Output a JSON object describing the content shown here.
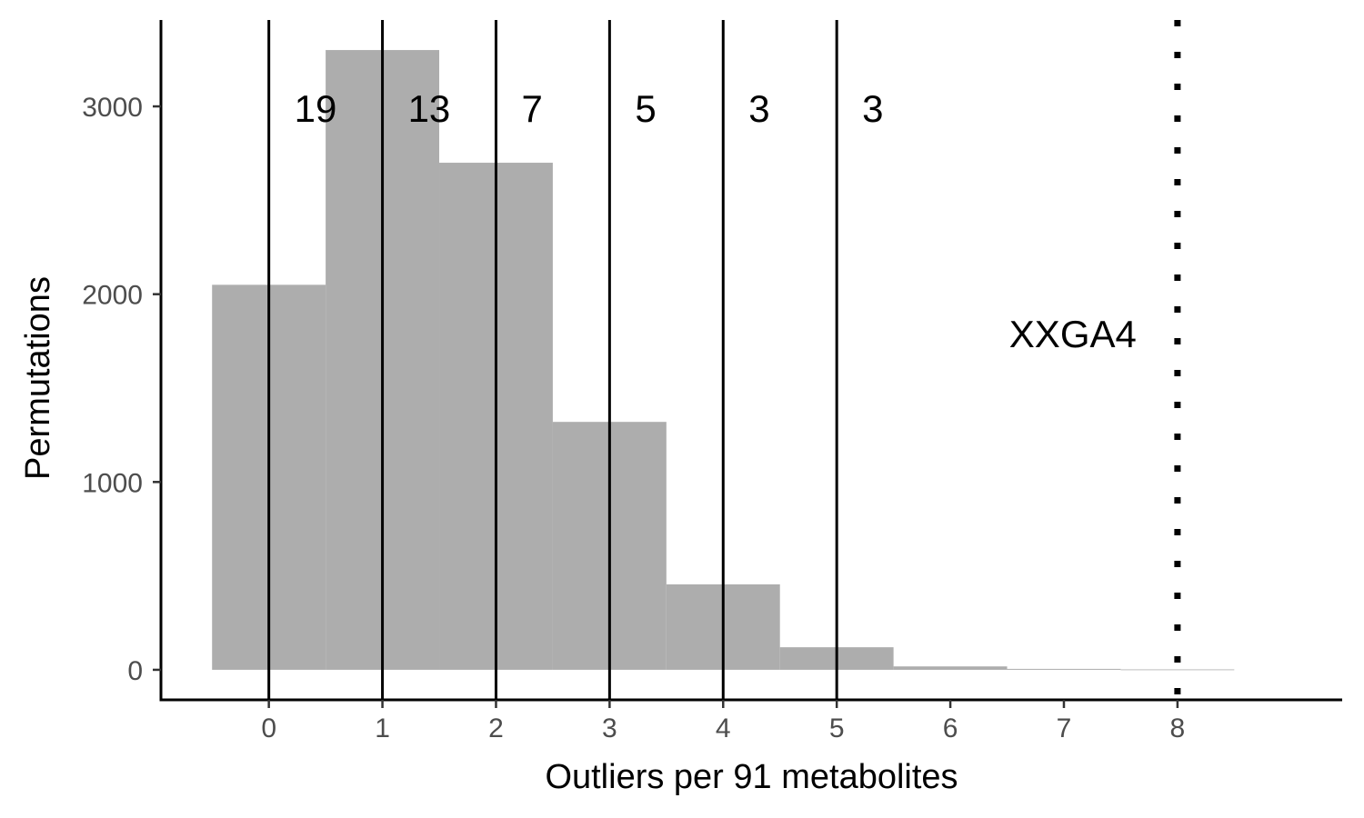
{
  "chart_data": {
    "type": "bar",
    "xlabel": "Outliers per 91 metabolites",
    "ylabel": "Permutations",
    "x_ticks": [
      "0",
      "1",
      "2",
      "3",
      "4",
      "5",
      "6",
      "7",
      "8"
    ],
    "y_ticks": [
      "0",
      "1000",
      "2000",
      "3000"
    ],
    "xlim": [
      -0.95,
      9.45
    ],
    "ylim": [
      -160,
      3460
    ],
    "bins": [
      {
        "x": 0,
        "count": 2050
      },
      {
        "x": 1,
        "count": 3300
      },
      {
        "x": 2,
        "count": 2700
      },
      {
        "x": 3,
        "count": 1320
      },
      {
        "x": 4,
        "count": 455
      },
      {
        "x": 5,
        "count": 120
      },
      {
        "x": 6,
        "count": 18
      },
      {
        "x": 7,
        "count": 5
      },
      {
        "x": 8,
        "count": 2
      }
    ],
    "bar_color": "#adadad",
    "reference_lines": [
      {
        "x": 0,
        "label": "19"
      },
      {
        "x": 1,
        "label": "13"
      },
      {
        "x": 2,
        "label": "7"
      },
      {
        "x": 3,
        "label": "5"
      },
      {
        "x": 4,
        "label": "3"
      },
      {
        "x": 5,
        "label": "3"
      }
    ],
    "reference_label_y": 2990,
    "highlight_line": {
      "x": 8,
      "label": "XXGA4",
      "style": "dotted",
      "label_y": 1790
    },
    "grid": false
  }
}
